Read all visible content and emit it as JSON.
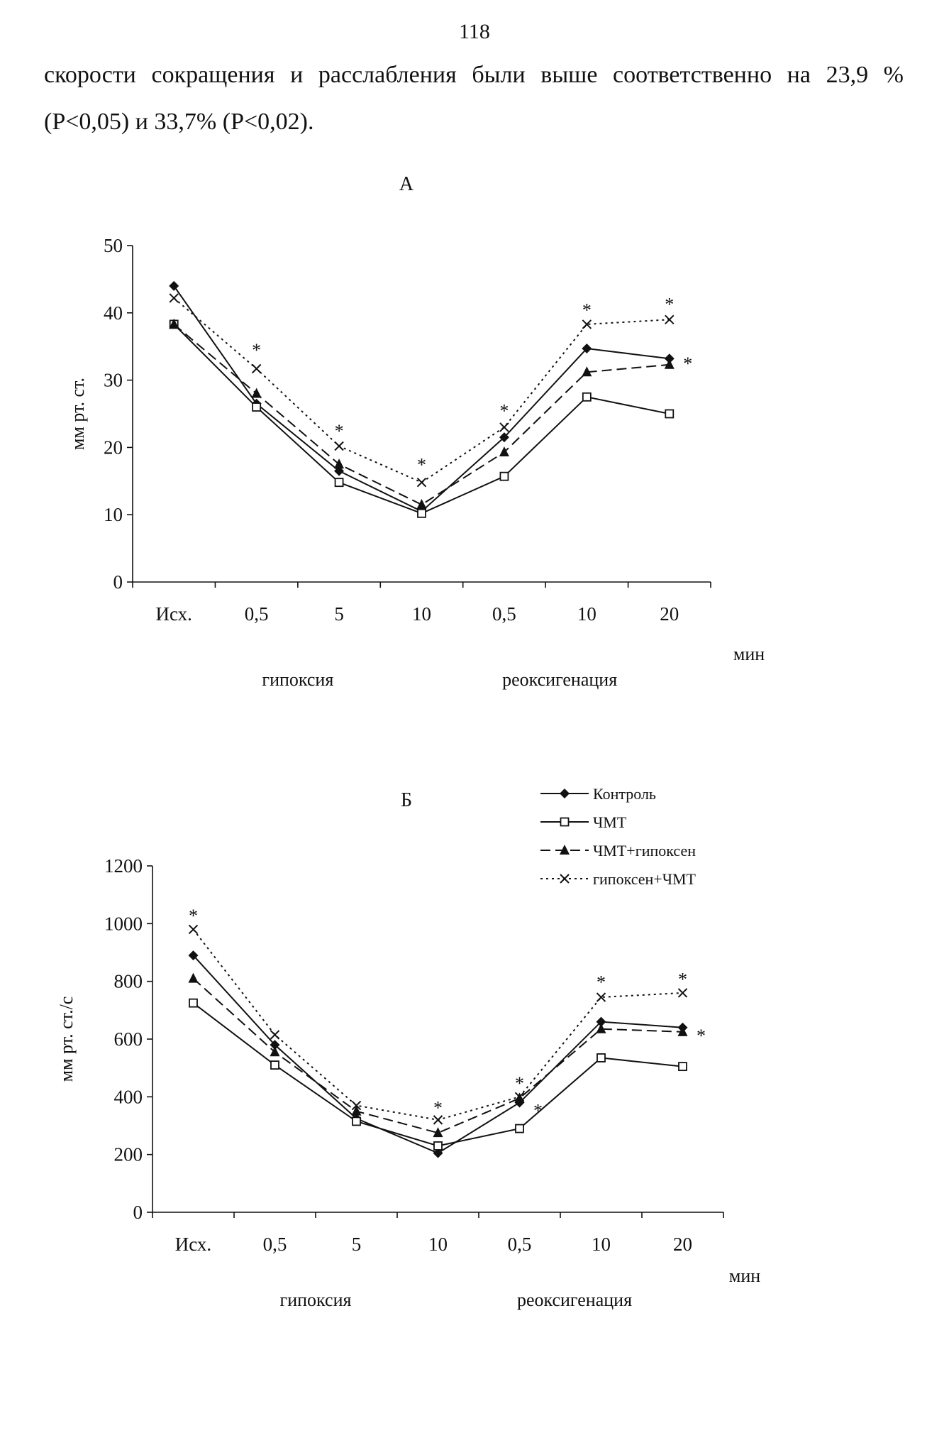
{
  "page": {
    "number": "118",
    "text_line1": "скорости сокращения и расслабления были выше соответственно на 23,9 %",
    "text_line2": "(Р<0,05) и 33,7% (Р<0,02)."
  },
  "chart_data": [
    {
      "type": "line",
      "title": "А",
      "ylabel": "мм рт. ст.",
      "xunit": "мин",
      "categories": [
        "Исх.",
        "0,5",
        "5",
        "10",
        "0,5",
        "10",
        "20"
      ],
      "groups": [
        {
          "label": "гипоксия"
        },
        {
          "label": "реоксигенация"
        }
      ],
      "ylim": [
        0,
        50
      ],
      "yticks": [
        0,
        10,
        20,
        30,
        40,
        50
      ],
      "series": [
        {
          "name": "Контроль",
          "values": [
            44,
            26.5,
            16.5,
            10.5,
            21.5,
            34.7,
            33.2
          ],
          "color": "#111111",
          "dash": "",
          "marker": "diamond"
        },
        {
          "name": "ЧМТ",
          "values": [
            38.3,
            26,
            14.8,
            10.2,
            15.7,
            27.5,
            25
          ],
          "color": "#111111",
          "dash": "",
          "marker": "square"
        },
        {
          "name": "ЧМТ+гипоксен",
          "values": [
            38.3,
            28,
            17.5,
            11.5,
            19.3,
            31.2,
            32.3
          ],
          "color": "#111111",
          "dash": "14 7",
          "marker": "triangle"
        },
        {
          "name": "гипоксен+ЧМТ",
          "values": [
            42.2,
            31.7,
            20.2,
            14.8,
            23,
            38.3,
            39
          ],
          "color": "#111111",
          "dash": "3 5",
          "marker": "cross"
        }
      ],
      "stars": [
        {
          "index": 1,
          "y": 35,
          "side": "above"
        },
        {
          "index": 2,
          "y": 23,
          "side": "above"
        },
        {
          "index": 3,
          "y": 18,
          "side": "above"
        },
        {
          "index": 4,
          "y": 26,
          "side": "above"
        },
        {
          "index": 5,
          "y": 41,
          "side": "above"
        },
        {
          "index": 6,
          "y": 41.8,
          "side": "above"
        },
        {
          "index": 6,
          "y": 33,
          "side": "right"
        }
      ]
    },
    {
      "type": "line",
      "title": "Б",
      "ylabel": "мм рт. ст./с",
      "xunit": "мин",
      "categories": [
        "Исх.",
        "0,5",
        "5",
        "10",
        "0,5",
        "10",
        "20"
      ],
      "groups": [
        {
          "label": "гипоксия"
        },
        {
          "label": "реоксигенация"
        }
      ],
      "ylim": [
        0,
        1200
      ],
      "yticks": [
        0,
        200,
        400,
        600,
        800,
        1000,
        1200
      ],
      "legend_position": "top-right",
      "series": [
        {
          "name": "Контроль",
          "values": [
            890,
            580,
            325,
            205,
            380,
            660,
            640
          ],
          "color": "#111111",
          "dash": "",
          "marker": "diamond"
        },
        {
          "name": "ЧМТ",
          "values": [
            725,
            510,
            315,
            230,
            290,
            535,
            505
          ],
          "color": "#111111",
          "dash": "",
          "marker": "square"
        },
        {
          "name": "ЧМТ+гипоксен",
          "values": [
            810,
            555,
            350,
            275,
            395,
            635,
            625
          ],
          "color": "#111111",
          "dash": "14 7",
          "marker": "triangle"
        },
        {
          "name": "гипоксен+ЧМТ",
          "values": [
            980,
            615,
            370,
            320,
            400,
            745,
            760
          ],
          "color": "#111111",
          "dash": "3 5",
          "marker": "cross"
        }
      ],
      "stars": [
        {
          "index": 0,
          "y": 1040,
          "side": "above"
        },
        {
          "index": 3,
          "y": 375,
          "side": "above"
        },
        {
          "index": 4,
          "y": 460,
          "side": "above"
        },
        {
          "index": 4,
          "y": 365,
          "side": "right"
        },
        {
          "index": 5,
          "y": 810,
          "side": "above"
        },
        {
          "index": 6,
          "y": 820,
          "side": "above"
        },
        {
          "index": 6,
          "y": 625,
          "side": "right"
        }
      ]
    }
  ]
}
